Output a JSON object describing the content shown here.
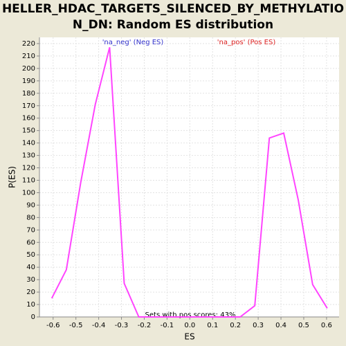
{
  "chart_data": {
    "type": "line",
    "title": [
      "HELLER_HDAC_TARGETS_SILENCED_BY_METHYLATIO",
      "N_DN: Random ES distribution"
    ],
    "x_label": "ES",
    "y_label": "P(ES)",
    "annotations": [
      "'na_neg' (Neg ES)",
      "'na_pos' (Pos ES)",
      "Sets with pos scores: 43%"
    ],
    "x": [
      -0.606,
      -0.542,
      -0.479,
      -0.415,
      -0.352,
      -0.288,
      -0.224,
      -0.161,
      -0.097,
      -0.033,
      0.03,
      0.094,
      0.158,
      0.221,
      0.285,
      0.349,
      0.412,
      0.476,
      0.539,
      0.603
    ],
    "series": [
      {
        "color": "#ff44ff",
        "values": [
          15,
          38,
          108,
          171,
          217,
          27,
          0,
          0,
          0,
          0,
          0,
          0,
          0,
          0,
          9,
          144,
          148,
          94,
          26,
          7
        ]
      }
    ],
    "xlim": [
      -0.66,
      0.655
    ],
    "xticks": [
      -0.6,
      -0.5,
      -0.4,
      -0.3,
      -0.2,
      -0.1,
      {
        "value": 0,
        "label": "0.0"
      },
      0.1,
      0.2,
      0.3,
      0.4,
      0.5,
      0.6
    ],
    "ylim": [
      0,
      225
    ],
    "yticks": [
      0,
      10,
      20,
      30,
      40,
      50,
      60,
      70,
      80,
      90,
      100,
      110,
      120,
      130,
      140,
      150,
      160,
      170,
      180,
      190,
      200,
      210,
      220
    ],
    "grid": true
  }
}
